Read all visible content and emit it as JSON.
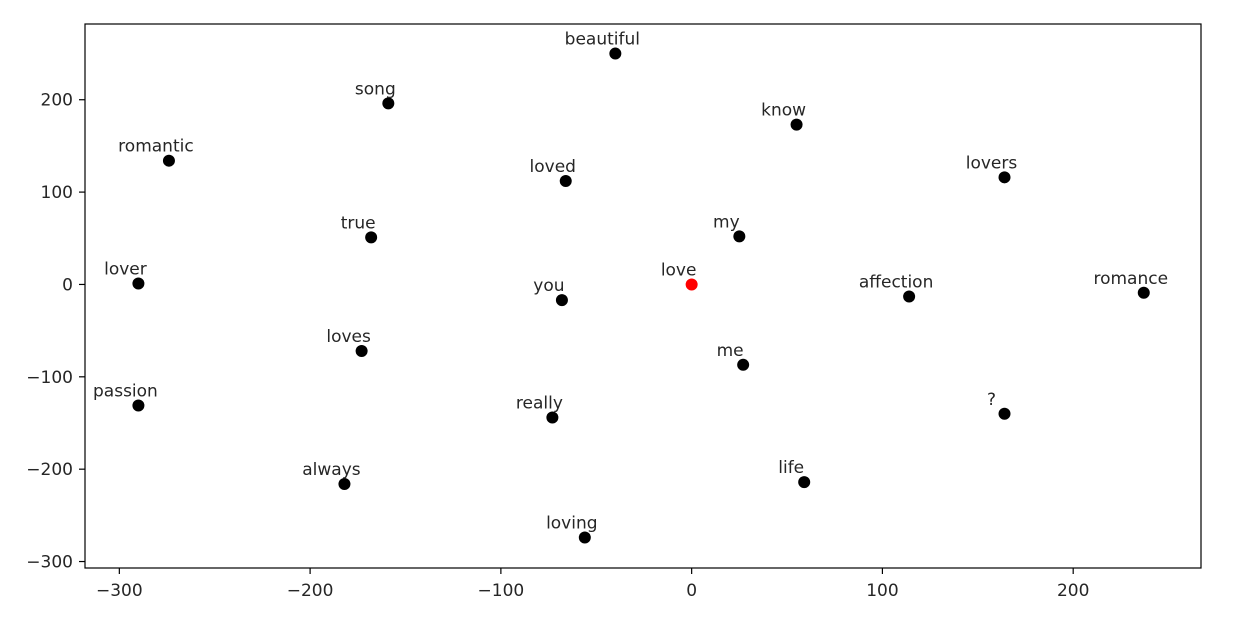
{
  "chart_data": {
    "type": "scatter",
    "title": "",
    "xlabel": "",
    "ylabel": "",
    "xlim": [
      -318,
      267
    ],
    "ylim": [
      -307,
      282
    ],
    "xticks": [
      -300,
      -200,
      -100,
      0,
      100,
      200
    ],
    "yticks": [
      200,
      100,
      0,
      -100,
      -200,
      -300
    ],
    "xtick_labels": [
      "−300",
      "−200",
      "−100",
      "0",
      "100",
      "200"
    ],
    "ytick_labels": [
      "200",
      "100",
      "0",
      "−100",
      "−200",
      "−300"
    ],
    "grid": false,
    "colors": {
      "point": "#000000",
      "highlight": "#ff0000",
      "frame": "#000000",
      "text": "#262626"
    },
    "points": [
      {
        "label": "beautiful",
        "x": -40,
        "y": 250,
        "highlight": false
      },
      {
        "label": "song",
        "x": -159,
        "y": 196,
        "highlight": false
      },
      {
        "label": "know",
        "x": 55,
        "y": 173,
        "highlight": false
      },
      {
        "label": "romantic",
        "x": -274,
        "y": 134,
        "highlight": false
      },
      {
        "label": "loved",
        "x": -66,
        "y": 112,
        "highlight": false
      },
      {
        "label": "lovers",
        "x": 164,
        "y": 116,
        "highlight": false
      },
      {
        "label": "true",
        "x": -168,
        "y": 51,
        "highlight": false
      },
      {
        "label": "my",
        "x": 25,
        "y": 52,
        "highlight": false
      },
      {
        "label": "lover",
        "x": -290,
        "y": 1,
        "highlight": false
      },
      {
        "label": "love",
        "x": 0,
        "y": 0,
        "highlight": true
      },
      {
        "label": "you",
        "x": -68,
        "y": -17,
        "highlight": false
      },
      {
        "label": "affection",
        "x": 114,
        "y": -13,
        "highlight": false
      },
      {
        "label": "romance",
        "x": 237,
        "y": -9,
        "highlight": false
      },
      {
        "label": "loves",
        "x": -173,
        "y": -72,
        "highlight": false
      },
      {
        "label": "me",
        "x": 27,
        "y": -87,
        "highlight": false
      },
      {
        "label": "passion",
        "x": -290,
        "y": -131,
        "highlight": false
      },
      {
        "label": "really",
        "x": -73,
        "y": -144,
        "highlight": false
      },
      {
        "label": "?",
        "x": 164,
        "y": -140,
        "highlight": false
      },
      {
        "label": "always",
        "x": -182,
        "y": -216,
        "highlight": false
      },
      {
        "label": "life",
        "x": 59,
        "y": -214,
        "highlight": false
      },
      {
        "label": "loving",
        "x": -56,
        "y": -274,
        "highlight": false
      }
    ]
  }
}
